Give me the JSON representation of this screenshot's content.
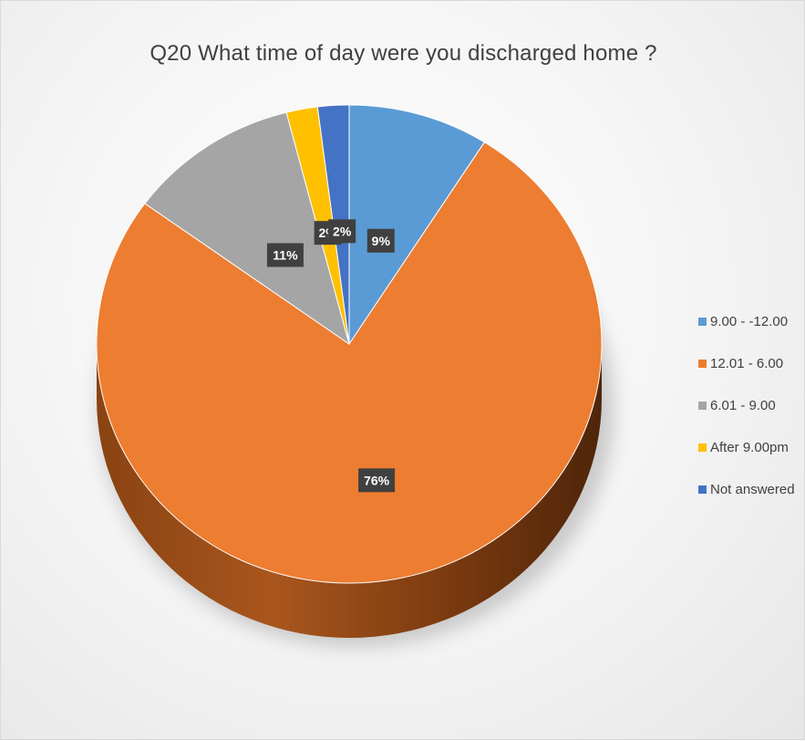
{
  "chart_data": {
    "type": "pie",
    "title": "Q20 What time of day were you discharged home ?",
    "categories": [
      "9.00 - -12.00",
      "12.01 - 6.00",
      "6.01 - 9.00",
      "After 9.00pm",
      "Not answered"
    ],
    "values": [
      9,
      76,
      11,
      2,
      2
    ],
    "data_labels": [
      "9%",
      "76%",
      "11%",
      "2%",
      "2%"
    ],
    "colors": [
      "#5b9bd5",
      "#ed7d31",
      "#a5a5a5",
      "#ffc000",
      "#4472c4"
    ],
    "legend": "right",
    "style": "3d"
  }
}
